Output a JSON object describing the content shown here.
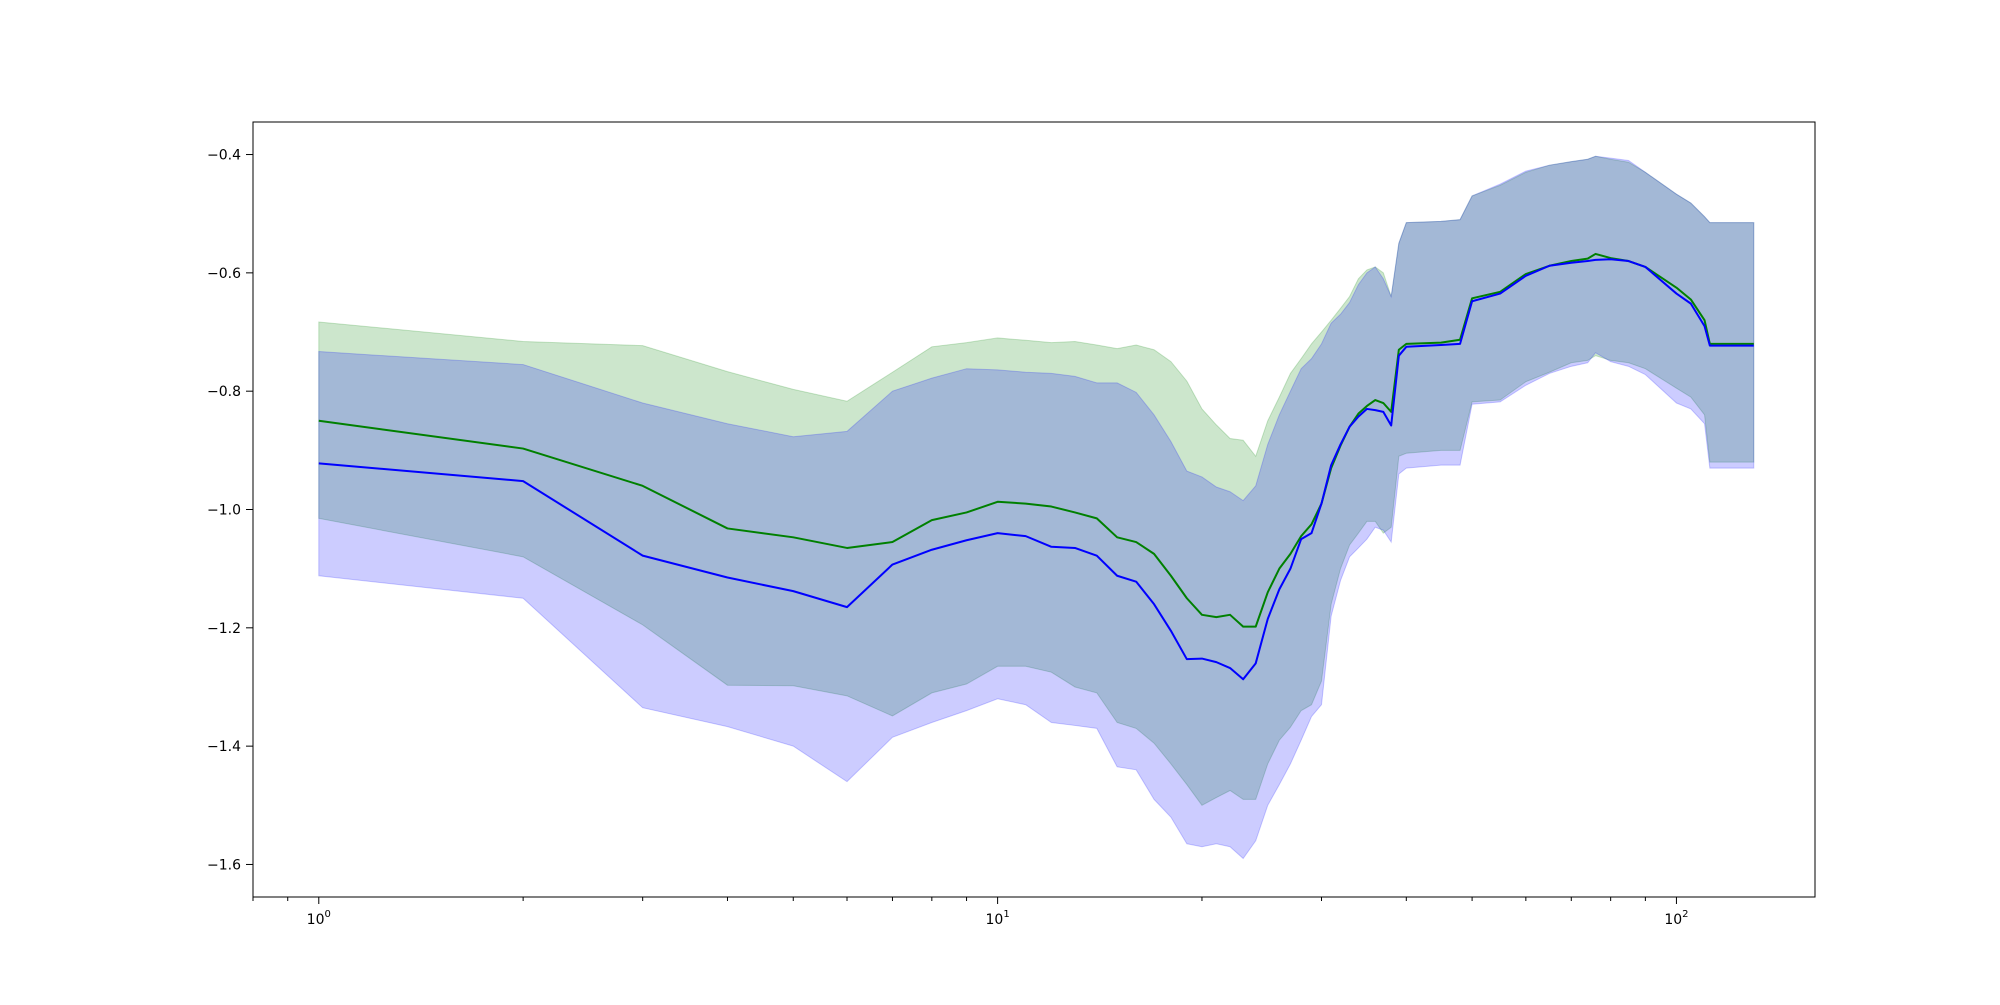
{
  "chart_data": {
    "type": "line",
    "title": "",
    "xlabel": "",
    "ylabel": "",
    "xscale": "log",
    "xlim": [
      0.8,
      160
    ],
    "ylim": [
      -1.655,
      -0.345
    ],
    "grid": false,
    "legend": "none",
    "x_ticks": [
      {
        "value": 1,
        "base": "10",
        "exp": "0"
      },
      {
        "value": 10,
        "base": "10",
        "exp": "1"
      },
      {
        "value": 100,
        "base": "10",
        "exp": "2"
      }
    ],
    "y_ticks": [
      {
        "value": -0.4,
        "label": "−0.4"
      },
      {
        "value": -0.6,
        "label": "−0.6"
      },
      {
        "value": -0.8,
        "label": "−0.8"
      },
      {
        "value": -1.0,
        "label": "−1.0"
      },
      {
        "value": -1.2,
        "label": "−1.2"
      },
      {
        "value": -1.4,
        "label": "−1.4"
      },
      {
        "value": -1.6,
        "label": "−1.6"
      }
    ],
    "series": [
      {
        "color": "#008000",
        "band_color": "#008000",
        "band_opacity": 0.2,
        "x": [
          1,
          2,
          3,
          4,
          5,
          6,
          7,
          8,
          9,
          10,
          11,
          12,
          13,
          14,
          15,
          16,
          17,
          18,
          19,
          20,
          21,
          22,
          23,
          24,
          25,
          26,
          27,
          28,
          29,
          30,
          31,
          32,
          33,
          34,
          35,
          36,
          37,
          38,
          39,
          40,
          45,
          48,
          50,
          55,
          60,
          65,
          70,
          74,
          76,
          80,
          85,
          90,
          100,
          105,
          110,
          112,
          130
        ],
        "mean": [
          -0.85,
          -0.897,
          -0.96,
          -1.032,
          -1.047,
          -1.065,
          -1.055,
          -1.018,
          -1.005,
          -0.987,
          -0.99,
          -0.995,
          -1.005,
          -1.015,
          -1.047,
          -1.055,
          -1.075,
          -1.112,
          -1.15,
          -1.178,
          -1.182,
          -1.178,
          -1.198,
          -1.198,
          -1.14,
          -1.1,
          -1.075,
          -1.045,
          -1.025,
          -0.99,
          -0.93,
          -0.892,
          -0.86,
          -0.838,
          -0.825,
          -0.815,
          -0.82,
          -0.835,
          -0.73,
          -0.72,
          -0.718,
          -0.713,
          -0.643,
          -0.632,
          -0.602,
          -0.588,
          -0.58,
          -0.576,
          -0.568,
          -0.575,
          -0.58,
          -0.59,
          -0.625,
          -0.645,
          -0.68,
          -0.72,
          -0.72
        ],
        "upper": [
          -0.683,
          -0.716,
          -0.723,
          -0.767,
          -0.797,
          -0.817,
          -0.768,
          -0.725,
          -0.718,
          -0.71,
          -0.714,
          -0.718,
          -0.716,
          -0.722,
          -0.728,
          -0.722,
          -0.73,
          -0.75,
          -0.783,
          -0.83,
          -0.857,
          -0.88,
          -0.883,
          -0.91,
          -0.85,
          -0.81,
          -0.77,
          -0.745,
          -0.72,
          -0.7,
          -0.68,
          -0.66,
          -0.64,
          -0.61,
          -0.595,
          -0.59,
          -0.6,
          -0.64,
          -0.55,
          -0.515,
          -0.513,
          -0.51,
          -0.47,
          -0.452,
          -0.43,
          -0.418,
          -0.412,
          -0.408,
          -0.403,
          -0.408,
          -0.413,
          -0.43,
          -0.467,
          -0.482,
          -0.505,
          -0.515,
          -0.515
        ],
        "lower": [
          -1.015,
          -1.08,
          -1.195,
          -1.297,
          -1.298,
          -1.315,
          -1.349,
          -1.31,
          -1.295,
          -1.265,
          -1.265,
          -1.275,
          -1.3,
          -1.31,
          -1.36,
          -1.37,
          -1.395,
          -1.43,
          -1.465,
          -1.5,
          -1.487,
          -1.475,
          -1.49,
          -1.49,
          -1.43,
          -1.39,
          -1.368,
          -1.34,
          -1.33,
          -1.29,
          -1.16,
          -1.1,
          -1.06,
          -1.04,
          -1.02,
          -1.02,
          -1.04,
          -1.03,
          -0.91,
          -0.905,
          -0.9,
          -0.9,
          -0.818,
          -0.815,
          -0.784,
          -0.768,
          -0.752,
          -0.748,
          -0.74,
          -0.748,
          -0.752,
          -0.762,
          -0.795,
          -0.81,
          -0.84,
          -0.92,
          -0.92
        ]
      },
      {
        "color": "#0000ff",
        "band_color": "#0000ff",
        "band_opacity": 0.2,
        "x": [
          1,
          2,
          3,
          4,
          5,
          6,
          7,
          8,
          9,
          10,
          11,
          12,
          13,
          14,
          15,
          16,
          17,
          18,
          19,
          20,
          21,
          22,
          23,
          24,
          25,
          26,
          27,
          28,
          29,
          30,
          31,
          32,
          33,
          34,
          35,
          36,
          37,
          38,
          39,
          40,
          45,
          48,
          50,
          55,
          60,
          65,
          70,
          74,
          76,
          80,
          85,
          90,
          100,
          105,
          110,
          112,
          130
        ],
        "mean": [
          -0.922,
          -0.952,
          -1.078,
          -1.115,
          -1.138,
          -1.165,
          -1.093,
          -1.068,
          -1.052,
          -1.04,
          -1.045,
          -1.063,
          -1.065,
          -1.078,
          -1.112,
          -1.122,
          -1.16,
          -1.205,
          -1.253,
          -1.252,
          -1.258,
          -1.268,
          -1.287,
          -1.26,
          -1.185,
          -1.135,
          -1.1,
          -1.05,
          -1.04,
          -0.99,
          -0.925,
          -0.89,
          -0.86,
          -0.843,
          -0.83,
          -0.832,
          -0.835,
          -0.858,
          -0.74,
          -0.725,
          -0.722,
          -0.72,
          -0.648,
          -0.635,
          -0.605,
          -0.588,
          -0.583,
          -0.58,
          -0.578,
          -0.577,
          -0.58,
          -0.59,
          -0.635,
          -0.652,
          -0.69,
          -0.723,
          -0.723
        ],
        "upper": [
          -0.733,
          -0.755,
          -0.82,
          -0.855,
          -0.877,
          -0.868,
          -0.8,
          -0.778,
          -0.762,
          -0.764,
          -0.768,
          -0.77,
          -0.775,
          -0.786,
          -0.786,
          -0.802,
          -0.84,
          -0.885,
          -0.935,
          -0.945,
          -0.962,
          -0.97,
          -0.985,
          -0.96,
          -0.89,
          -0.84,
          -0.8,
          -0.762,
          -0.745,
          -0.72,
          -0.685,
          -0.67,
          -0.65,
          -0.62,
          -0.6,
          -0.59,
          -0.61,
          -0.64,
          -0.55,
          -0.515,
          -0.513,
          -0.51,
          -0.47,
          -0.45,
          -0.428,
          -0.418,
          -0.412,
          -0.408,
          -0.403,
          -0.406,
          -0.41,
          -0.43,
          -0.467,
          -0.482,
          -0.505,
          -0.515,
          -0.515
        ],
        "lower": [
          -1.112,
          -1.15,
          -1.335,
          -1.367,
          -1.4,
          -1.46,
          -1.385,
          -1.36,
          -1.34,
          -1.32,
          -1.33,
          -1.36,
          -1.365,
          -1.37,
          -1.435,
          -1.44,
          -1.49,
          -1.52,
          -1.565,
          -1.57,
          -1.565,
          -1.57,
          -1.59,
          -1.56,
          -1.5,
          -1.465,
          -1.43,
          -1.39,
          -1.35,
          -1.33,
          -1.18,
          -1.12,
          -1.08,
          -1.065,
          -1.05,
          -1.03,
          -1.035,
          -1.055,
          -0.94,
          -0.93,
          -0.925,
          -0.925,
          -0.822,
          -0.818,
          -0.79,
          -0.77,
          -0.758,
          -0.752,
          -0.735,
          -0.75,
          -0.758,
          -0.772,
          -0.82,
          -0.83,
          -0.855,
          -0.93,
          -0.93
        ]
      }
    ]
  }
}
